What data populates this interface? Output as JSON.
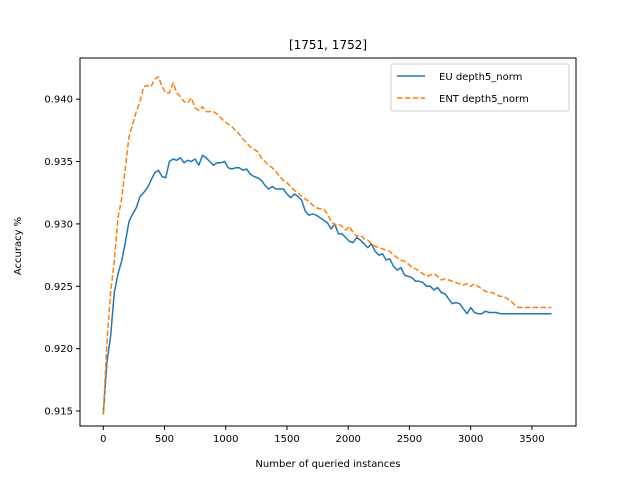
{
  "chart_data": {
    "type": "line",
    "title": "[1751, 1752]",
    "xlabel": "Number of queried instances",
    "ylabel": "Accuracy %",
    "xlim": [
      -190,
      3860
    ],
    "ylim": [
      0.9138,
      0.9433
    ],
    "xticks": [
      0,
      500,
      1000,
      1500,
      2000,
      2500,
      3000,
      3500
    ],
    "xtick_labels": [
      "0",
      "500",
      "1000",
      "1500",
      "2000",
      "2500",
      "3000",
      "3500"
    ],
    "yticks": [
      0.915,
      0.92,
      0.925,
      0.93,
      0.935,
      0.94
    ],
    "ytick_labels": [
      "0.915",
      "0.920",
      "0.925",
      "0.930",
      "0.935",
      "0.940"
    ],
    "grid": false,
    "legend_position": "top-right",
    "series": [
      {
        "name": "EU depth5_norm",
        "color": "#1f77b4",
        "dash": "solid",
        "x": [
          0,
          30,
          60,
          90,
          120,
          150,
          180,
          210,
          240,
          270,
          300,
          330,
          360,
          390,
          420,
          450,
          480,
          510,
          540,
          570,
          600,
          630,
          660,
          690,
          720,
          750,
          780,
          810,
          840,
          870,
          900,
          930,
          960,
          990,
          1020,
          1050,
          1080,
          1110,
          1140,
          1170,
          1200,
          1230,
          1260,
          1290,
          1320,
          1350,
          1380,
          1410,
          1440,
          1470,
          1500,
          1530,
          1560,
          1590,
          1620,
          1650,
          1680,
          1710,
          1740,
          1770,
          1800,
          1830,
          1860,
          1890,
          1920,
          1950,
          1980,
          2010,
          2040,
          2070,
          2100,
          2130,
          2160,
          2190,
          2220,
          2250,
          2280,
          2310,
          2340,
          2370,
          2400,
          2430,
          2460,
          2490,
          2520,
          2550,
          2580,
          2610,
          2640,
          2670,
          2700,
          2730,
          2760,
          2790,
          2820,
          2850,
          2880,
          2910,
          2940,
          2970,
          3000,
          3030,
          3060,
          3090,
          3120,
          3150,
          3180,
          3210,
          3240,
          3270,
          3300,
          3330,
          3360,
          3390,
          3420,
          3450,
          3480,
          3510,
          3540,
          3570,
          3600,
          3630,
          3660
        ],
        "values": [
          0.9148,
          0.9189,
          0.921,
          0.9245,
          0.926,
          0.927,
          0.9285,
          0.9302,
          0.9308,
          0.9313,
          0.9322,
          0.9325,
          0.9329,
          0.9335,
          0.9341,
          0.9343,
          0.9338,
          0.9337,
          0.935,
          0.9352,
          0.9351,
          0.9353,
          0.9349,
          0.9351,
          0.935,
          0.9352,
          0.9347,
          0.9355,
          0.9353,
          0.935,
          0.9347,
          0.9349,
          0.9349,
          0.935,
          0.9345,
          0.9344,
          0.9345,
          0.9345,
          0.9343,
          0.9344,
          0.934,
          0.9338,
          0.9337,
          0.9335,
          0.9331,
          0.9328,
          0.933,
          0.9328,
          0.9328,
          0.9328,
          0.9324,
          0.9321,
          0.9324,
          0.9322,
          0.9319,
          0.931,
          0.9307,
          0.9308,
          0.9307,
          0.9305,
          0.9303,
          0.9301,
          0.9296,
          0.93,
          0.9292,
          0.9292,
          0.9289,
          0.9286,
          0.9285,
          0.9289,
          0.9287,
          0.9284,
          0.9281,
          0.9284,
          0.9278,
          0.9275,
          0.9276,
          0.9271,
          0.9272,
          0.9266,
          0.9263,
          0.9265,
          0.9259,
          0.9258,
          0.9257,
          0.9254,
          0.9254,
          0.9253,
          0.925,
          0.925,
          0.9247,
          0.9249,
          0.9245,
          0.9244,
          0.924,
          0.9236,
          0.9237,
          0.9236,
          0.9232,
          0.9228,
          0.9233,
          0.9229,
          0.9228,
          0.9228,
          0.923,
          0.9229,
          0.9229,
          0.9229,
          0.9228,
          0.9228,
          0.9228,
          0.9228,
          0.9228,
          0.9228,
          0.9228,
          0.9228,
          0.9228,
          0.9228,
          0.9228,
          0.9228,
          0.9228,
          0.9228,
          0.9228
        ]
      },
      {
        "name": "ENT depth5_norm",
        "color": "#ff7f0e",
        "dash": "dashed",
        "x": [
          0,
          30,
          60,
          90,
          120,
          150,
          180,
          210,
          240,
          270,
          300,
          330,
          360,
          390,
          420,
          450,
          480,
          510,
          540,
          570,
          600,
          630,
          660,
          690,
          720,
          750,
          780,
          810,
          840,
          870,
          900,
          930,
          960,
          990,
          1020,
          1050,
          1080,
          1110,
          1140,
          1170,
          1200,
          1230,
          1260,
          1290,
          1320,
          1350,
          1380,
          1410,
          1440,
          1470,
          1500,
          1530,
          1560,
          1590,
          1620,
          1650,
          1680,
          1710,
          1740,
          1770,
          1800,
          1830,
          1860,
          1890,
          1920,
          1950,
          1980,
          2010,
          2040,
          2070,
          2100,
          2130,
          2160,
          2190,
          2220,
          2250,
          2280,
          2310,
          2340,
          2370,
          2400,
          2430,
          2460,
          2490,
          2520,
          2550,
          2580,
          2610,
          2640,
          2670,
          2700,
          2730,
          2760,
          2790,
          2820,
          2850,
          2880,
          2910,
          2940,
          2970,
          3000,
          3030,
          3060,
          3090,
          3120,
          3150,
          3180,
          3210,
          3240,
          3270,
          3300,
          3330,
          3360,
          3390,
          3420,
          3450,
          3480,
          3510,
          3540,
          3570,
          3600,
          3630,
          3660
        ],
        "values": [
          0.9147,
          0.9205,
          0.9245,
          0.927,
          0.9305,
          0.932,
          0.9345,
          0.937,
          0.938,
          0.939,
          0.9398,
          0.941,
          0.9411,
          0.941,
          0.9416,
          0.9418,
          0.941,
          0.9405,
          0.9405,
          0.9413,
          0.9405,
          0.9402,
          0.9398,
          0.9397,
          0.9401,
          0.9393,
          0.9391,
          0.9394,
          0.939,
          0.939,
          0.939,
          0.9388,
          0.9385,
          0.9382,
          0.938,
          0.9378,
          0.9375,
          0.9372,
          0.9368,
          0.9365,
          0.9362,
          0.936,
          0.9358,
          0.9353,
          0.935,
          0.9347,
          0.9345,
          0.9342,
          0.9338,
          0.9335,
          0.9333,
          0.933,
          0.9327,
          0.9325,
          0.9322,
          0.932,
          0.9318,
          0.9315,
          0.9313,
          0.9312,
          0.9312,
          0.9308,
          0.9302,
          0.9299,
          0.93,
          0.9298,
          0.9295,
          0.9298,
          0.9293,
          0.929,
          0.9291,
          0.9288,
          0.9287,
          0.9284,
          0.9282,
          0.9281,
          0.928,
          0.9279,
          0.9278,
          0.9275,
          0.9273,
          0.9271,
          0.927,
          0.9268,
          0.9265,
          0.9264,
          0.9262,
          0.926,
          0.9258,
          0.9259,
          0.926,
          0.9258,
          0.9255,
          0.9256,
          0.9255,
          0.9254,
          0.9253,
          0.9252,
          0.9251,
          0.9252,
          0.925,
          0.9252,
          0.925,
          0.9248,
          0.9246,
          0.9245,
          0.9245,
          0.9243,
          0.9242,
          0.9242,
          0.924,
          0.9238,
          0.9235,
          0.9233,
          0.9233,
          0.9233,
          0.9233,
          0.9233,
          0.9233,
          0.9233,
          0.9233,
          0.9233,
          0.9233
        ]
      }
    ]
  }
}
